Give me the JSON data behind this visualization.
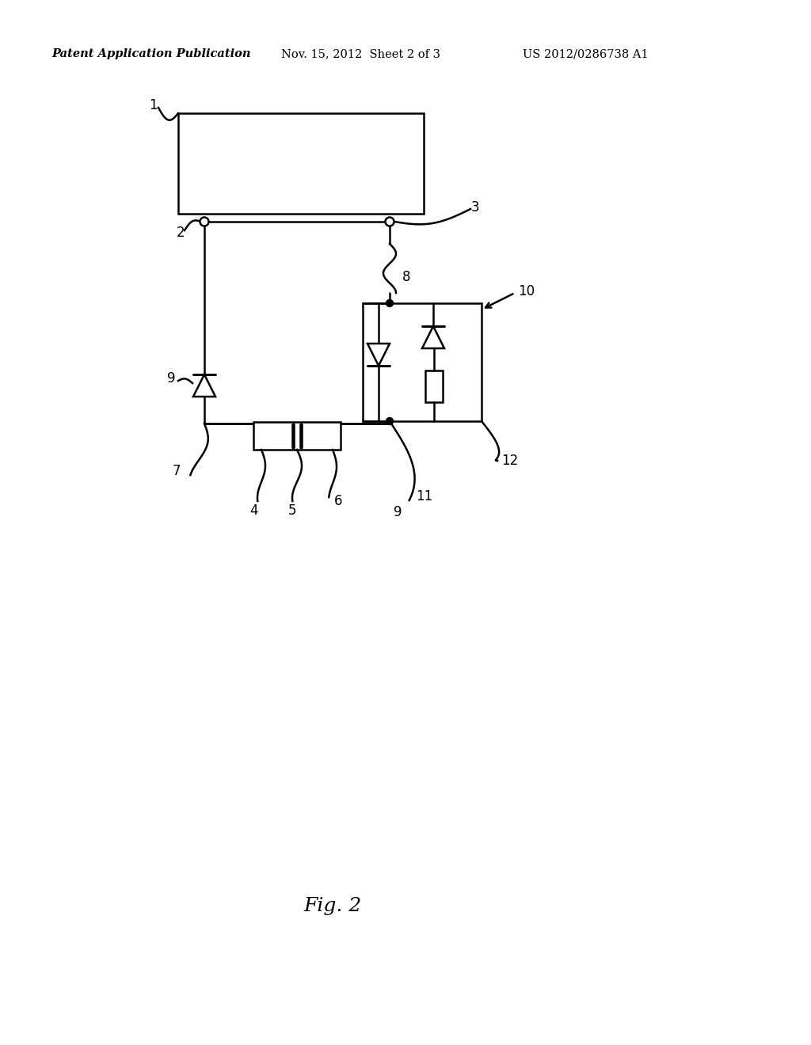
{
  "title": "Fig. 2",
  "header_left": "Patent Application Publication",
  "header_mid": "Nov. 15, 2012  Sheet 2 of 3",
  "header_right": "US 2012/0286738 A1",
  "bg_color": "#ffffff",
  "line_color": "#000000",
  "fig_width": 10.24,
  "fig_height": 13.2,
  "dpi": 100,
  "lw": 1.8
}
